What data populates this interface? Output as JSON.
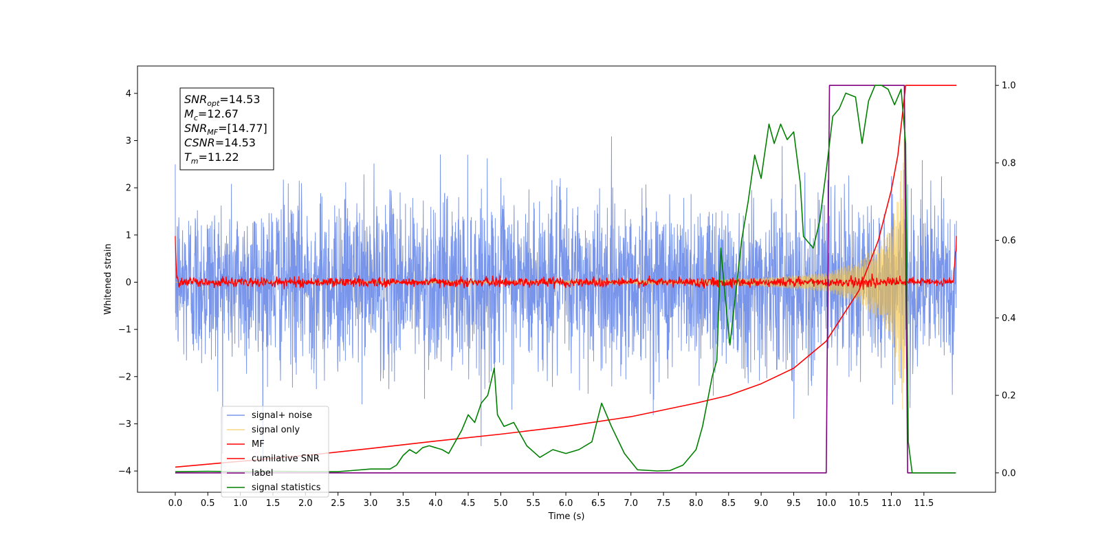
{
  "chart_data": {
    "type": "line",
    "xlabel": "Time (s)",
    "ylabel": "Whitened strain",
    "xlim": [
      -0.58,
      12.6
    ],
    "ylim_left": [
      -4.45,
      4.58
    ],
    "ylim_right": [
      -0.05,
      1.05
    ],
    "x_ticks": [
      "0.0",
      "0.5",
      "1.0",
      "1.5",
      "2.0",
      "2.5",
      "3.0",
      "3.5",
      "4.0",
      "4.5",
      "5.0",
      "5.5",
      "6.0",
      "6.5",
      "7.0",
      "7.5",
      "8.0",
      "8.5",
      "9.0",
      "9.5",
      "10.0",
      "10.5",
      "11.0",
      "11.5"
    ],
    "y_ticks_left": [
      "−4",
      "−3",
      "−2",
      "−1",
      "0",
      "1",
      "2",
      "3",
      "4"
    ],
    "y_ticks_right": [
      "0.0",
      "0.2",
      "0.4",
      "0.6",
      "0.8",
      "1.0"
    ],
    "grid": false,
    "legend_placement": "lower-left",
    "annotation": [
      {
        "base": "SNR",
        "sub": "opt",
        "rest": "=14.53"
      },
      {
        "base": "M",
        "sub": "c",
        "rest": "=12.67"
      },
      {
        "base": "SNR",
        "sub": "MF",
        "rest": "=[14.77]"
      },
      {
        "base": "CSNR",
        "sub": "",
        "rest": "=14.53"
      },
      {
        "base": "T",
        "sub": "m",
        "rest": "=11.22"
      }
    ],
    "series": [
      {
        "name": "signal+ noise",
        "color": "#6a89e8",
        "axis": "left",
        "kind": "noise",
        "x_range": [
          0.0,
          12.0
        ],
        "std": 0.9,
        "max_abs": 4.17
      },
      {
        "name": "signal only",
        "color": "#f5c242",
        "axis": "left",
        "kind": "chirp",
        "x_range": [
          0.0,
          11.22
        ],
        "envelope": [
          [
            0.0,
            0.0
          ],
          [
            8.0,
            0.05
          ],
          [
            9.0,
            0.09
          ],
          [
            10.0,
            0.2
          ],
          [
            10.5,
            0.45
          ],
          [
            10.8,
            0.8
          ],
          [
            11.0,
            1.2
          ],
          [
            11.1,
            1.8
          ],
          [
            11.17,
            2.7
          ],
          [
            11.2,
            3.1
          ],
          [
            11.22,
            0.0
          ]
        ]
      },
      {
        "name": "MF",
        "color": "#ff0000",
        "axis": "left",
        "kind": "mf",
        "x_range": [
          0.0,
          12.0
        ],
        "points": [
          [
            0.0,
            1.0
          ],
          [
            0.02,
            0.1
          ],
          [
            0.05,
            0.0
          ],
          [
            11.95,
            0.0
          ],
          [
            12.0,
            0.9
          ]
        ]
      },
      {
        "name": "cumilative SNR",
        "color": "#ff0000",
        "axis": "right",
        "points": [
          [
            0.0,
            0.015
          ],
          [
            1.0,
            0.03
          ],
          [
            2.0,
            0.045
          ],
          [
            3.0,
            0.063
          ],
          [
            4.0,
            0.082
          ],
          [
            5.0,
            0.1
          ],
          [
            6.0,
            0.12
          ],
          [
            7.0,
            0.145
          ],
          [
            8.0,
            0.18
          ],
          [
            8.5,
            0.2
          ],
          [
            9.0,
            0.23
          ],
          [
            9.5,
            0.27
          ],
          [
            10.0,
            0.34
          ],
          [
            10.5,
            0.47
          ],
          [
            10.8,
            0.6
          ],
          [
            11.0,
            0.73
          ],
          [
            11.1,
            0.82
          ],
          [
            11.22,
            1.0
          ],
          [
            12.0,
            1.0
          ]
        ]
      },
      {
        "name": "label",
        "color": "#800080",
        "axis": "right",
        "points": [
          [
            0.0,
            0.0
          ],
          [
            10.0,
            0.0
          ],
          [
            10.05,
            1.0
          ],
          [
            11.2,
            1.0
          ],
          [
            11.25,
            0.0
          ],
          [
            11.99,
            0.0
          ]
        ]
      },
      {
        "name": "signal statistics",
        "color": "#008000",
        "axis": "right",
        "points": [
          [
            0.0,
            0.003
          ],
          [
            0.5,
            0.004
          ],
          [
            1.0,
            0.003
          ],
          [
            1.5,
            0.004
          ],
          [
            2.0,
            0.003
          ],
          [
            2.5,
            0.003
          ],
          [
            3.0,
            0.01
          ],
          [
            3.3,
            0.01
          ],
          [
            3.4,
            0.02
          ],
          [
            3.5,
            0.045
          ],
          [
            3.6,
            0.06
          ],
          [
            3.7,
            0.05
          ],
          [
            3.8,
            0.065
          ],
          [
            3.9,
            0.07
          ],
          [
            4.0,
            0.065
          ],
          [
            4.1,
            0.06
          ],
          [
            4.2,
            0.05
          ],
          [
            4.3,
            0.08
          ],
          [
            4.4,
            0.11
          ],
          [
            4.5,
            0.15
          ],
          [
            4.6,
            0.13
          ],
          [
            4.7,
            0.18
          ],
          [
            4.8,
            0.2
          ],
          [
            4.9,
            0.27
          ],
          [
            4.95,
            0.15
          ],
          [
            5.05,
            0.12
          ],
          [
            5.2,
            0.13
          ],
          [
            5.4,
            0.07
          ],
          [
            5.6,
            0.04
          ],
          [
            5.8,
            0.06
          ],
          [
            6.0,
            0.05
          ],
          [
            6.2,
            0.06
          ],
          [
            6.4,
            0.08
          ],
          [
            6.55,
            0.18
          ],
          [
            6.7,
            0.12
          ],
          [
            6.9,
            0.05
          ],
          [
            7.1,
            0.008
          ],
          [
            7.4,
            0.005
          ],
          [
            7.6,
            0.006
          ],
          [
            7.8,
            0.02
          ],
          [
            8.0,
            0.06
          ],
          [
            8.1,
            0.12
          ],
          [
            8.25,
            0.25
          ],
          [
            8.32,
            0.29
          ],
          [
            8.38,
            0.58
          ],
          [
            8.45,
            0.45
          ],
          [
            8.52,
            0.33
          ],
          [
            8.6,
            0.45
          ],
          [
            8.7,
            0.6
          ],
          [
            8.8,
            0.7
          ],
          [
            8.9,
            0.82
          ],
          [
            9.0,
            0.76
          ],
          [
            9.05,
            0.82
          ],
          [
            9.12,
            0.9
          ],
          [
            9.2,
            0.85
          ],
          [
            9.3,
            0.9
          ],
          [
            9.4,
            0.86
          ],
          [
            9.5,
            0.88
          ],
          [
            9.6,
            0.75
          ],
          [
            9.65,
            0.61
          ],
          [
            9.8,
            0.58
          ],
          [
            9.9,
            0.65
          ],
          [
            10.0,
            0.78
          ],
          [
            10.1,
            0.92
          ],
          [
            10.2,
            0.94
          ],
          [
            10.3,
            0.98
          ],
          [
            10.45,
            0.97
          ],
          [
            10.55,
            0.85
          ],
          [
            10.65,
            0.96
          ],
          [
            10.75,
            1.0
          ],
          [
            10.85,
            1.0
          ],
          [
            10.95,
            0.99
          ],
          [
            11.05,
            0.95
          ],
          [
            11.15,
            0.99
          ],
          [
            11.22,
            0.85
          ],
          [
            11.26,
            0.08
          ],
          [
            11.32,
            0.0
          ],
          [
            11.99,
            0.0
          ]
        ]
      }
    ]
  }
}
